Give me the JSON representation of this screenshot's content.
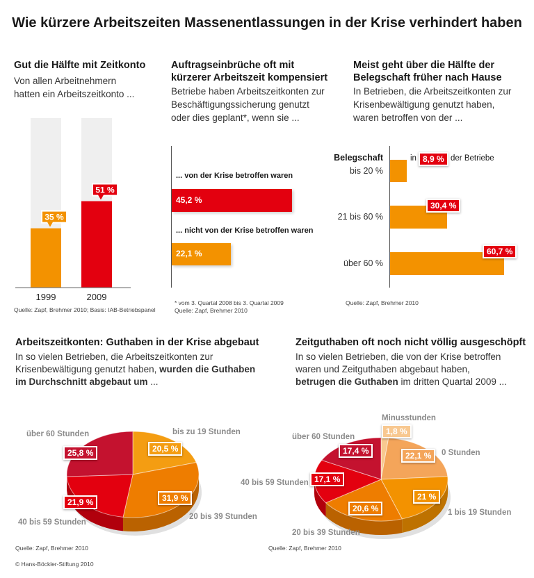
{
  "title": "Wie kürzere Arbeitszeiten Massenentlassungen in der Krise verhindert haben",
  "copyright": "© Hans-Böckler-Stiftung 2010",
  "colors": {
    "orange": "#f39200",
    "red": "#e3000f",
    "darkred": "#c4122f"
  },
  "panel1": {
    "heading": "Gut die Hälfte mit Zeitkonto",
    "sub1": "Von allen Arbeitnehmern",
    "sub2": "hatten ein Arbeitszeitkonto ...",
    "source": "Quelle: Zapf, Brehmer 2010; Basis: IAB-Betriebspanel"
  },
  "panel2": {
    "heading1": "Auftragseinbrüche oft mit",
    "heading2": "kürzerer Arbeitszeit kompensiert",
    "sub1": "Betriebe haben Arbeitszeitkonten zur",
    "sub2": "Beschäftigungssicherung genutzt",
    "sub3": "oder dies geplant*, wenn sie ...",
    "footnote": "* vom 3. Quartal 2008 bis 3. Quartal 2009",
    "source": "Quelle: Zapf, Brehmer 2010"
  },
  "panel3": {
    "heading1": "Meist geht über die Hälfte der",
    "heading2": "Belegschaft früher nach Hause",
    "sub1": "In Betrieben, die Arbeitszeitkonten zur",
    "sub2": "Krisenbewältigung genutzt haben,",
    "sub3": "waren betroffen von der ...",
    "axis_title": "Belegschaft",
    "in": "in",
    "der_betriebe": "der Betriebe",
    "source": "Quelle: Zapf, Brehmer 2010"
  },
  "panel4": {
    "heading": "Arbeitszeitkonten: Guthaben in der Krise abgebaut",
    "sub1": "In so vielen Betrieben, die Arbeitszeitkonten zur",
    "sub2a": "Krisenbewältigung genutzt haben, ",
    "sub2b": "wurden die Guthaben",
    "sub3a": "im Durchschnitt abgebaut um",
    "sub3b": " ...",
    "source": "Quelle: Zapf, Brehmer 2010"
  },
  "panel5": {
    "heading": "Zeitguthaben oft noch nicht völlig ausgeschöpft",
    "sub1": "In so vielen Betrieben, die von der Krise betroffen",
    "sub2": "waren und Zeitguthaben abgebaut haben,",
    "sub3a": "betrugen die Guthaben",
    "sub3b": " im dritten Quartal 2009 ...",
    "source": "Quelle: Zapf, Brehmer 2010"
  },
  "chart_data": [
    {
      "type": "bar",
      "categories": [
        "1999",
        "2009"
      ],
      "values": [
        35,
        51
      ],
      "labels": [
        "35 %",
        "51 %"
      ],
      "colors": [
        "#f39200",
        "#e3000f"
      ],
      "ylim": [
        0,
        100
      ]
    },
    {
      "type": "bar",
      "orientation": "horizontal",
      "categories": [
        "... von der Krise betroffen waren",
        "... nicht von der Krise betroffen waren"
      ],
      "values": [
        45.2,
        22.1
      ],
      "labels": [
        "45,2 %",
        "22,1 %"
      ],
      "colors": [
        "#e3000f",
        "#f39200"
      ]
    },
    {
      "type": "bar",
      "orientation": "horizontal",
      "categories": [
        "bis 20 %",
        "21 bis 60 %",
        "über 60 %"
      ],
      "values": [
        8.9,
        30.4,
        60.7
      ],
      "labels": [
        "8,9 %",
        "30,4 %",
        "60,7 %"
      ],
      "color": "#f39200"
    },
    {
      "type": "pie",
      "categories": [
        "bis zu 19 Stunden",
        "20 bis 39 Stunden",
        "40 bis 59 Stunden",
        "über 60 Stunden"
      ],
      "values": [
        20.5,
        31.9,
        21.9,
        25.8
      ],
      "labels": [
        "20,5 %",
        "31,9 %",
        "21,9 %",
        "25,8 %"
      ],
      "colors": [
        "#f49d12",
        "#ee7d00",
        "#e3000f",
        "#c4122f"
      ]
    },
    {
      "type": "pie",
      "categories": [
        "Minusstunden",
        "0 Stunden",
        "1 bis 19 Stunden",
        "20 bis 39 Stunden",
        "40 bis 59 Stunden",
        "über 60 Stunden"
      ],
      "values": [
        1.8,
        22.1,
        21,
        20.6,
        17.1,
        17.4
      ],
      "labels": [
        "1,8 %",
        "22,1 %",
        "21 %",
        "20,6 %",
        "17,1 %",
        "17,4 %"
      ],
      "colors": [
        "#f8c890",
        "#f4a55a",
        "#f39200",
        "#ee7d00",
        "#e3000f",
        "#c4122f"
      ]
    }
  ]
}
